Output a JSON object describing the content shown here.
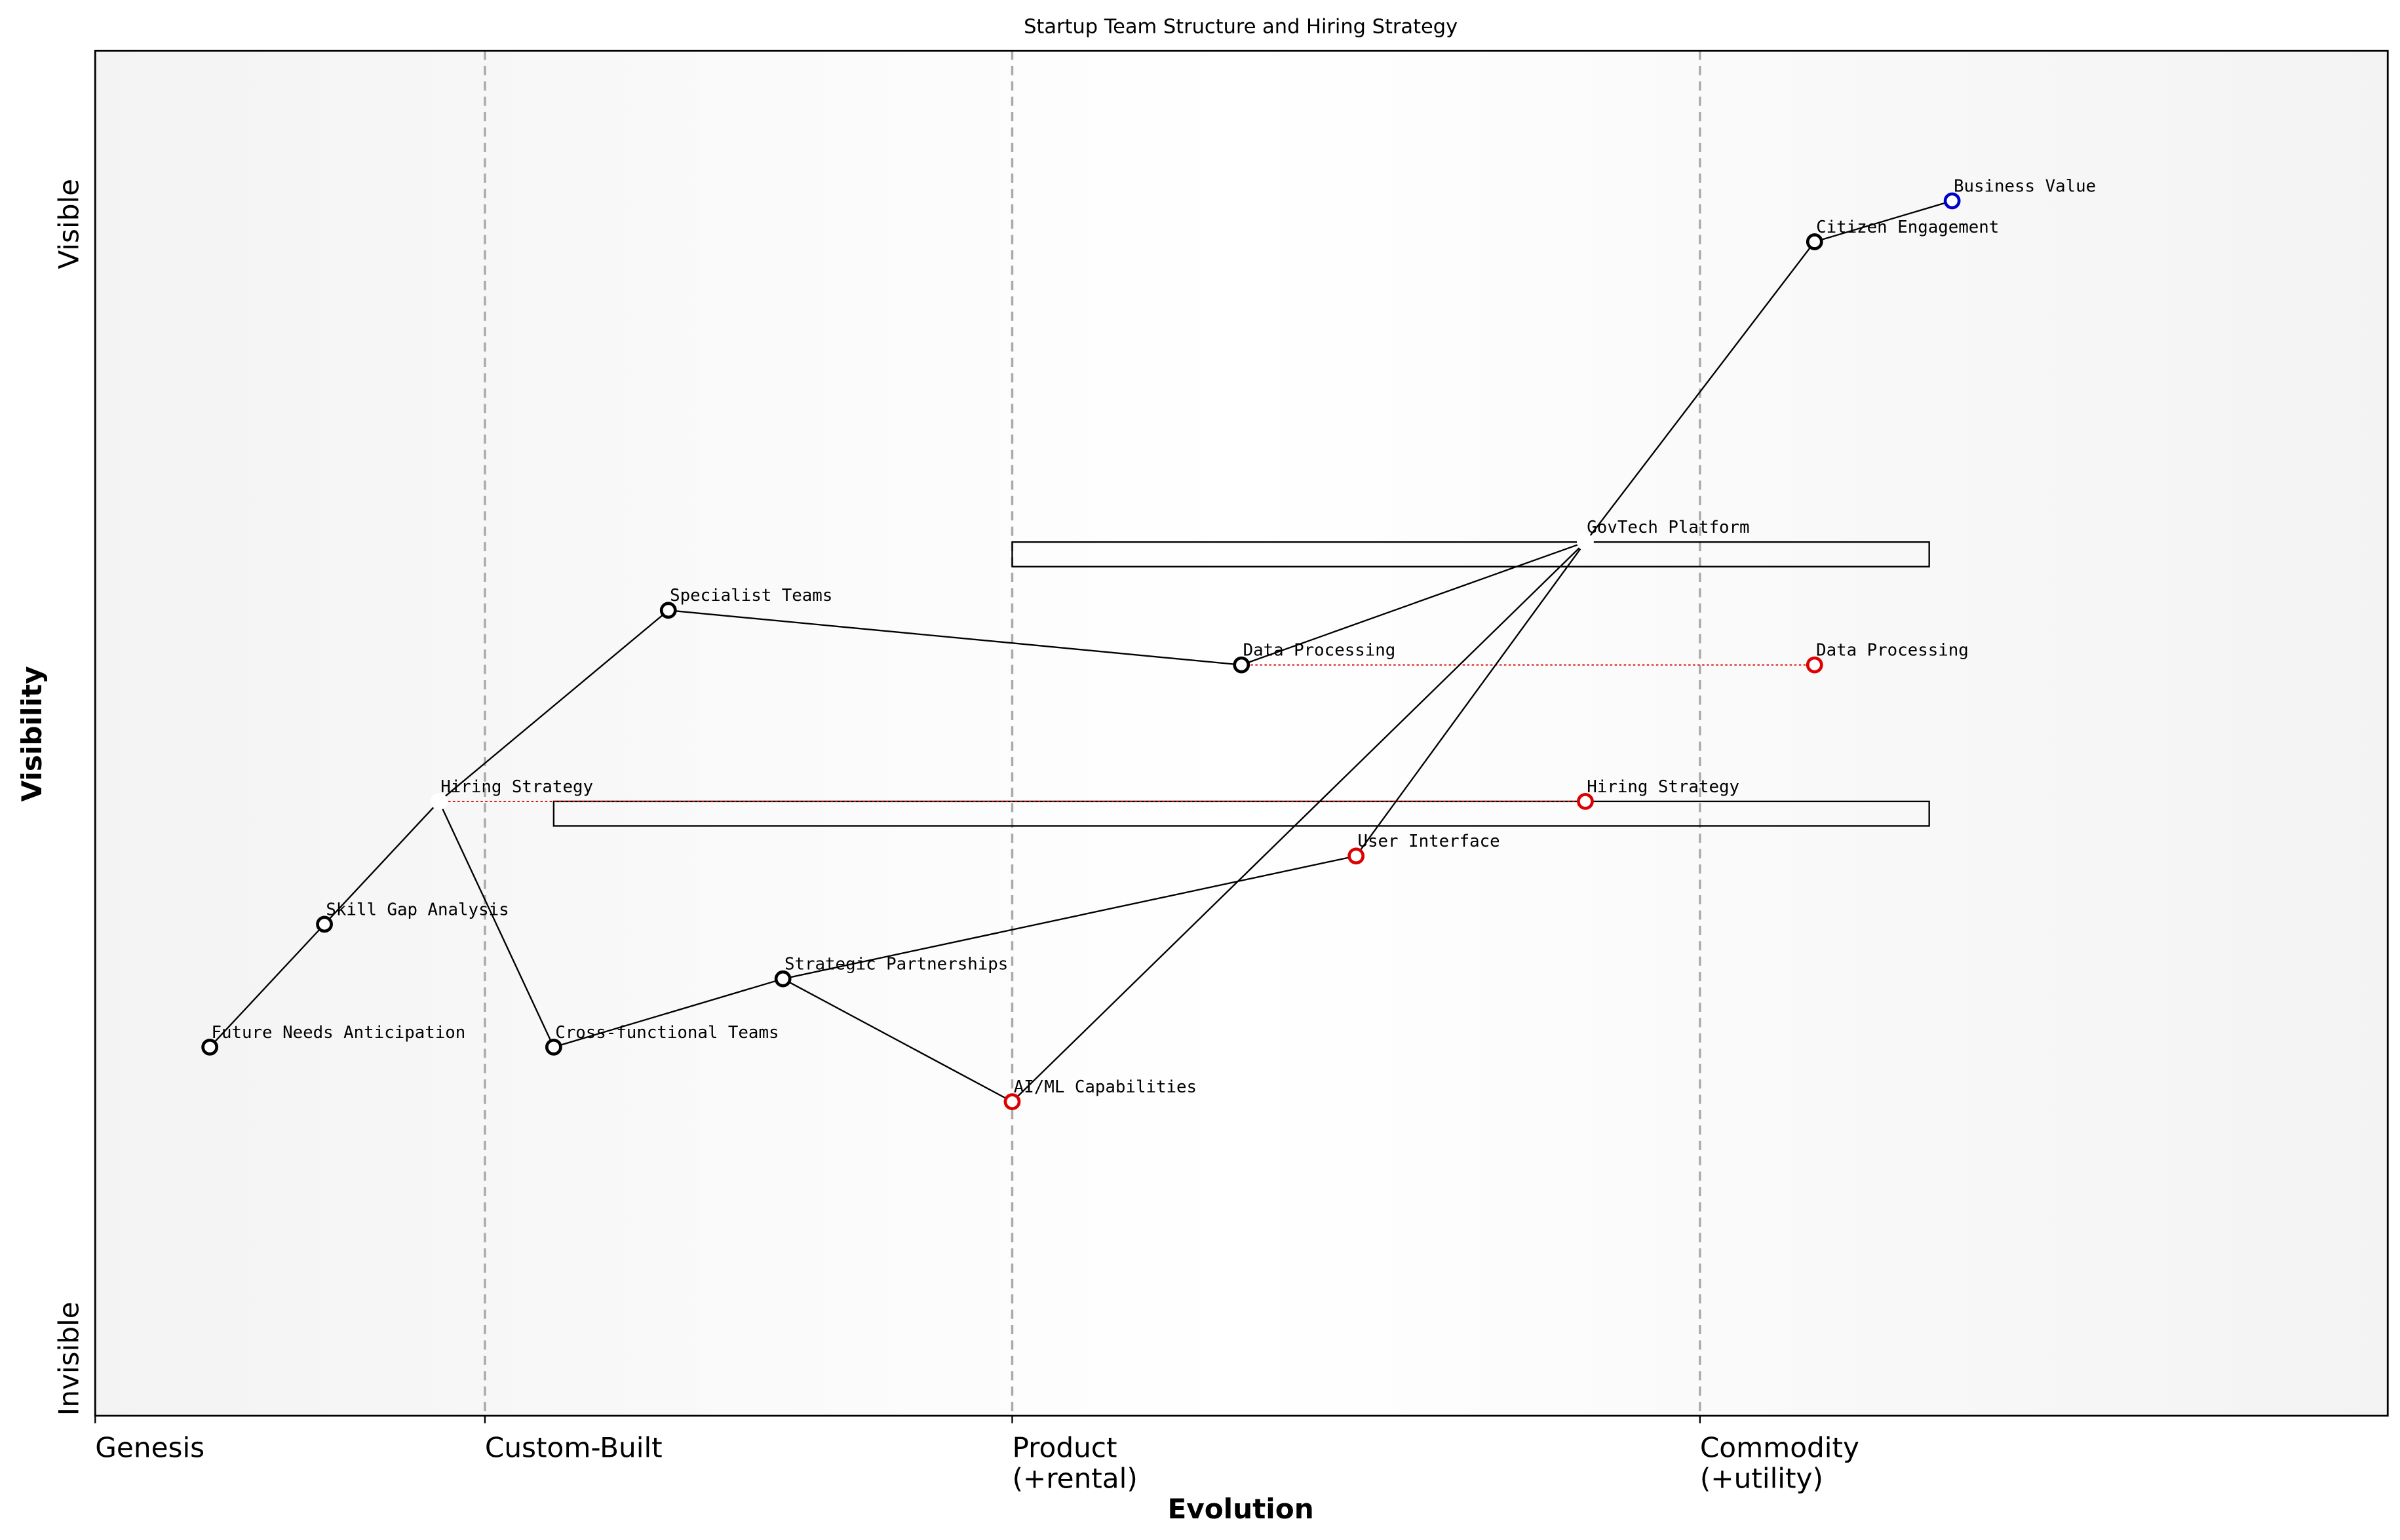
{
  "chart_data": {
    "type": "wardley",
    "title": "Startup Team Structure and Hiring Strategy",
    "xlabel": "Evolution",
    "ylabel": "Visibility",
    "xlim": [
      0,
      1
    ],
    "ylim": [
      0,
      1
    ],
    "xticks": [
      {
        "value": 0,
        "label": "Genesis"
      },
      {
        "value": 0.17,
        "label": "Custom-Built"
      },
      {
        "value": 0.4,
        "label": "Product\n(+rental)"
      },
      {
        "value": 0.7,
        "label": "Commodity\n(+utility)"
      }
    ],
    "yticks": [
      {
        "value": 0,
        "label": "Invisible"
      },
      {
        "value": 0.84,
        "label": "Visible"
      }
    ],
    "nodes": [
      {
        "name": "Business Value",
        "x": 0.81,
        "y": 0.89,
        "color": "#0000cc"
      },
      {
        "name": "Citizen Engagement",
        "x": 0.75,
        "y": 0.86,
        "color": "#000000"
      },
      {
        "name": "GovTech Platform",
        "x": 0.65,
        "y": 0.64,
        "color": "#ffffff"
      },
      {
        "name": "Data Processing",
        "x": 0.5,
        "y": 0.55,
        "color": "#000000"
      },
      {
        "name": "Data Processing",
        "x": 0.75,
        "y": 0.55,
        "color": "#dd0000"
      },
      {
        "name": "Specialist Teams",
        "x": 0.25,
        "y": 0.59,
        "color": "#000000"
      },
      {
        "name": "Hiring Strategy",
        "x": 0.15,
        "y": 0.45,
        "color": "#ffffff"
      },
      {
        "name": "Hiring Strategy",
        "x": 0.65,
        "y": 0.45,
        "color": "#dd0000"
      },
      {
        "name": "Skill Gap Analysis",
        "x": 0.1,
        "y": 0.36,
        "color": "#000000"
      },
      {
        "name": "Future Needs Anticipation",
        "x": 0.05,
        "y": 0.27,
        "color": "#000000"
      },
      {
        "name": "Cross-functional Teams",
        "x": 0.2,
        "y": 0.27,
        "color": "#000000"
      },
      {
        "name": "Strategic Partnerships",
        "x": 0.3,
        "y": 0.32,
        "color": "#000000"
      },
      {
        "name": "AI/ML Capabilities",
        "x": 0.4,
        "y": 0.23,
        "color": "#dd0000"
      },
      {
        "name": "User Interface",
        "x": 0.55,
        "y": 0.41,
        "color": "#dd0000"
      }
    ],
    "links": [
      [
        0,
        1
      ],
      [
        1,
        2
      ],
      [
        2,
        3
      ],
      [
        2,
        12
      ],
      [
        2,
        13
      ],
      [
        3,
        5
      ],
      [
        5,
        6
      ],
      [
        6,
        8
      ],
      [
        8,
        9
      ],
      [
        6,
        10
      ],
      [
        10,
        11
      ],
      [
        11,
        13
      ],
      [
        11,
        12
      ]
    ],
    "evolutions": [
      [
        3,
        4
      ],
      [
        6,
        7
      ]
    ],
    "pipelines": [
      {
        "node": 2,
        "x": [
          0.4,
          0.8
        ]
      },
      {
        "node": 6,
        "x": [
          0.2,
          0.8
        ]
      }
    ]
  }
}
